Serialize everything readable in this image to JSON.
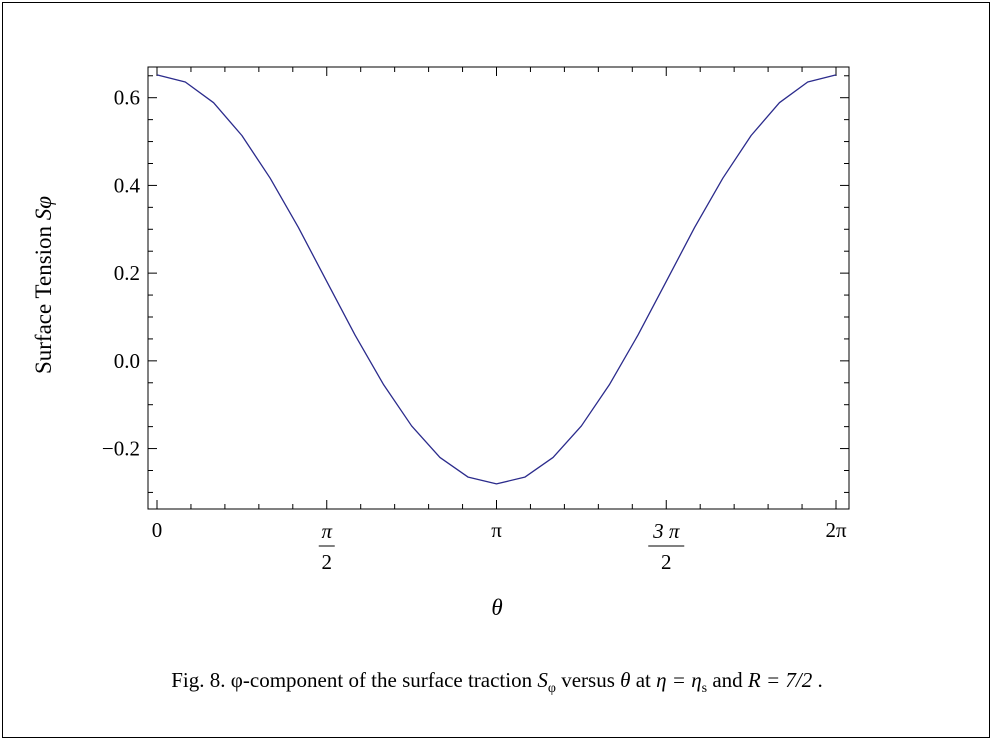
{
  "chart_data": {
    "type": "line",
    "title": "",
    "xlabel": "θ",
    "ylabel": "Surface Tension Sφ",
    "ylabel_text": "Surface Tension ",
    "ylabel_symbol": "Sφ",
    "xlim": [
      0,
      6.283185
    ],
    "ylim": [
      -0.315,
      0.67
    ],
    "x_ticks": [
      {
        "value": 0,
        "label": "0",
        "numerator": "",
        "denominator": ""
      },
      {
        "value": 1.570796,
        "label": "π/2",
        "numerator": "π",
        "denominator": "2"
      },
      {
        "value": 3.141593,
        "label": "π",
        "numerator": "",
        "denominator": ""
      },
      {
        "value": 4.712389,
        "label": "3π/2",
        "numerator": "3 π",
        "denominator": "2"
      },
      {
        "value": 6.283185,
        "label": "2π",
        "numerator": "",
        "denominator": ""
      }
    ],
    "y_ticks": [
      {
        "value": -0.2,
        "label": "−0.2"
      },
      {
        "value": 0.0,
        "label": "0.0"
      },
      {
        "value": 0.2,
        "label": "0.2"
      },
      {
        "value": 0.4,
        "label": "0.4"
      },
      {
        "value": 0.6,
        "label": "0.6"
      }
    ],
    "series": [
      {
        "color": "#2b2b8c",
        "x": [
          0,
          0.2618,
          0.5236,
          0.7854,
          1.0472,
          1.309,
          1.5708,
          1.8326,
          2.0944,
          2.3562,
          2.618,
          2.8798,
          3.1416,
          3.4034,
          3.6652,
          3.927,
          4.1888,
          4.4506,
          4.7124,
          4.9742,
          5.236,
          5.4978,
          5.7596,
          6.0214,
          6.2832
        ],
        "y": [
          0.652,
          0.6358,
          0.5886,
          0.5138,
          0.4165,
          0.3039,
          0.181,
          0.0587,
          -0.0533,
          -0.1484,
          -0.2202,
          -0.2652,
          -0.2805,
          -0.2652,
          -0.2202,
          -0.1484,
          -0.0533,
          0.0587,
          0.181,
          0.3039,
          0.4165,
          0.5138,
          0.5886,
          0.6358,
          0.652
        ]
      }
    ],
    "grid": false,
    "legend": "none"
  },
  "caption": {
    "prefix": "Fig. 8. φ-component of the surface traction ",
    "s_symbol": "S",
    "s_subscript": "φ",
    "mid1": " versus ",
    "theta": "θ",
    "mid2": " at ",
    "eta_expr": "η = η",
    "eta_subscript": "s",
    "mid3": " and ",
    "r_expr": "R = 7/2",
    "end": " ."
  }
}
